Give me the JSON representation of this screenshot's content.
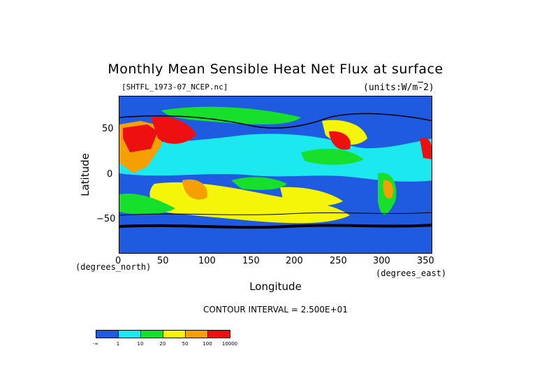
{
  "title": "Monthly Mean Sensible Heat Net Flux at surface",
  "file_label": "[SHTFL_1973-07_NCEP.nc]",
  "units_label": "(units:W/m^-2)",
  "x_axis": {
    "label": "Longitude",
    "units": "(degrees_east)",
    "ticks": [
      "0",
      "50",
      "100",
      "150",
      "200",
      "250",
      "300",
      "350"
    ],
    "range": [
      0,
      357.5
    ]
  },
  "y_axis": {
    "label": "Latitude",
    "units": "(degrees_north)",
    "ticks": [
      "50",
      "0",
      "−50"
    ],
    "range": [
      -90,
      90
    ]
  },
  "contour_interval": "CONTOUR INTERVAL = 2.500E+01",
  "colorbar": {
    "colors": [
      "#1f5be0",
      "#1ce8f0",
      "#16e02c",
      "#f5f50a",
      "#f5a000",
      "#ee1010"
    ],
    "labels": [
      "-∞",
      "1",
      "10",
      "20",
      "50",
      "100",
      "10000"
    ]
  }
}
